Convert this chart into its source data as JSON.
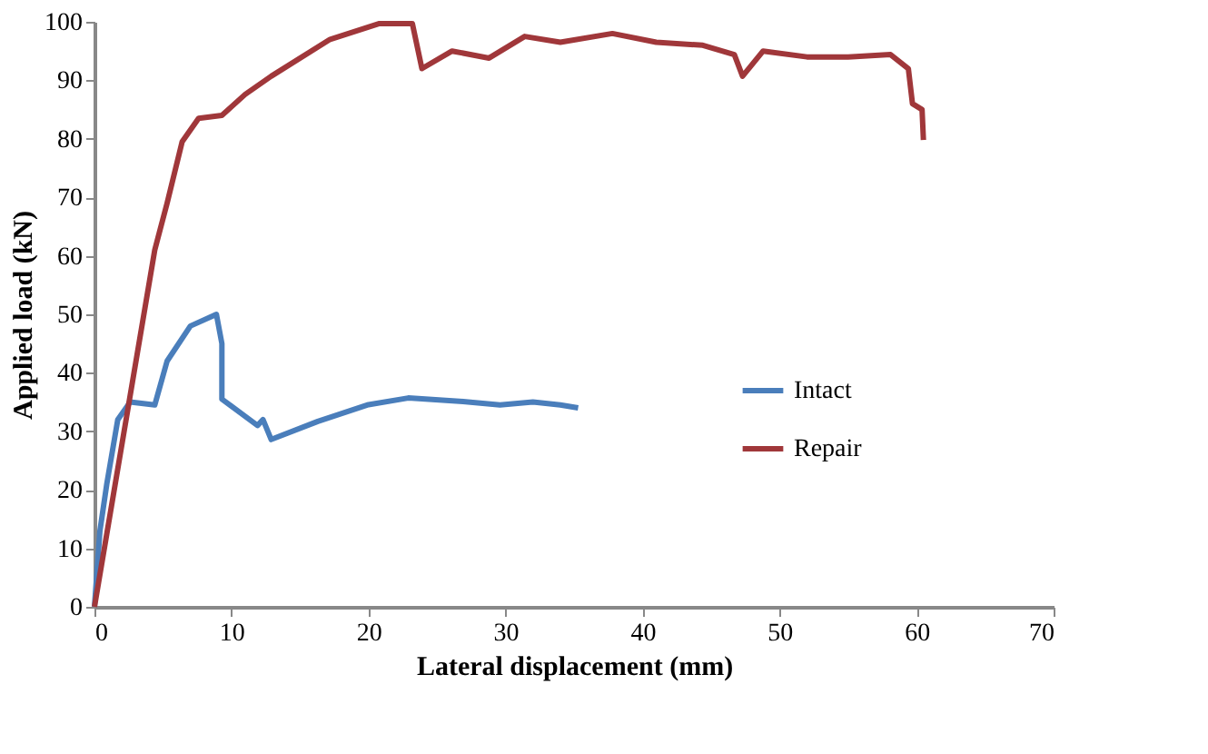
{
  "chart_data": {
    "type": "line",
    "xlabel": "Lateral displacement (mm)",
    "ylabel": "Applied load (kN)",
    "xlim": [
      0,
      70
    ],
    "xticks": [
      0,
      10,
      20,
      30,
      40,
      50,
      60,
      70
    ],
    "ylim": [
      0,
      100
    ],
    "yticks": [
      0,
      10,
      20,
      30,
      40,
      50,
      60,
      70,
      80,
      90,
      100
    ],
    "grid": false,
    "legend": "right",
    "marker": "none",
    "line_style": "solid",
    "series": [
      {
        "name": "Intact",
        "color": "#4a7ebb",
        "x": [
          0,
          0.4,
          0.9,
          1.7,
          2.6,
          4.4,
          5.3,
          7.0,
          8.9,
          9.3,
          9.3,
          11.9,
          12.3,
          12.9,
          16.3,
          19.9,
          22.9,
          26.9,
          29.6,
          32.0,
          34.0,
          35.3
        ],
        "values": [
          0,
          13,
          21,
          32,
          35,
          34.5,
          42,
          48,
          50,
          45,
          35.5,
          31,
          32,
          28.6,
          31.7,
          34.5,
          35.7,
          35.1,
          34.5,
          35,
          34.5,
          34
        ]
      },
      {
        "name": "Repair",
        "color": "#a0373a",
        "x": [
          0,
          4.4,
          5.3,
          6.4,
          7.6,
          9.3,
          11,
          12.9,
          17.2,
          20.8,
          23.2,
          23.9,
          26.1,
          28.8,
          31.4,
          34,
          37.8,
          41,
          44.4,
          46.7,
          47.3,
          48.8,
          52,
          55,
          58.1,
          59.4,
          59.7,
          60.4,
          60.5
        ],
        "values": [
          0,
          61,
          69,
          79.5,
          83.5,
          84,
          87.6,
          90.7,
          97,
          99.7,
          99.7,
          92,
          95,
          93.8,
          97.5,
          96.5,
          98,
          96.5,
          96,
          94.4,
          90.7,
          95,
          94,
          94,
          94.4,
          92,
          86,
          85,
          79.8
        ]
      }
    ]
  }
}
